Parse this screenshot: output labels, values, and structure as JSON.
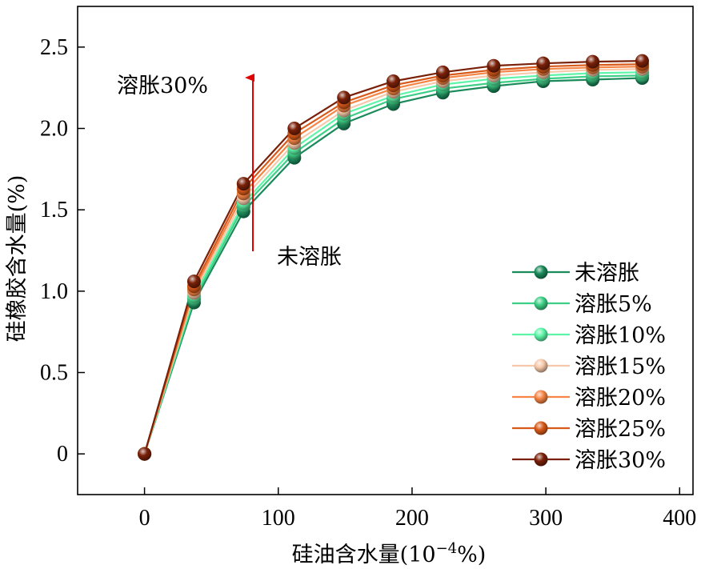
{
  "chart_data": {
    "type": "line",
    "xlabel_main": "硅油含水量(10",
    "xlabel_sup": "−4",
    "xlabel_tail": "%)",
    "ylabel": "硅橡胶含水量(%)",
    "xlim": [
      -50,
      410
    ],
    "ylim": [
      -0.25,
      2.75
    ],
    "xticks": [
      0,
      100,
      200,
      300,
      400
    ],
    "yticks": [
      0,
      0.5,
      1.0,
      1.5,
      2.0,
      2.5
    ],
    "xtick_labels": [
      "0",
      "100",
      "200",
      "300",
      "400"
    ],
    "ytick_labels": [
      "0",
      "0.5",
      "1.0",
      "1.5",
      "2.0",
      "2.5"
    ],
    "x": [
      0,
      37,
      74,
      112,
      149,
      186,
      223,
      261,
      298,
      335,
      372
    ],
    "series": [
      {
        "name": "未溶胀",
        "color": "#1a8a5a",
        "values": [
          0,
          0.93,
          1.49,
          1.82,
          2.03,
          2.15,
          2.22,
          2.26,
          2.29,
          2.3,
          2.31
        ]
      },
      {
        "name": "溶胀5%",
        "color": "#3dcf86",
        "values": [
          0,
          0.95,
          1.52,
          1.85,
          2.06,
          2.18,
          2.245,
          2.28,
          2.305,
          2.32,
          2.325
        ]
      },
      {
        "name": "溶胀10%",
        "color": "#5ef5a8",
        "values": [
          0,
          0.97,
          1.54,
          1.88,
          2.09,
          2.2,
          2.27,
          2.305,
          2.325,
          2.34,
          2.345
        ]
      },
      {
        "name": "溶胀15%",
        "color": "#f7c9aa",
        "values": [
          0,
          0.99,
          1.57,
          1.91,
          2.11,
          2.225,
          2.29,
          2.325,
          2.345,
          2.36,
          2.365
        ]
      },
      {
        "name": "溶胀20%",
        "color": "#f58545",
        "values": [
          0,
          1.01,
          1.6,
          1.94,
          2.14,
          2.245,
          2.31,
          2.345,
          2.365,
          2.375,
          2.38
        ]
      },
      {
        "name": "溶胀25%",
        "color": "#d85a1a",
        "values": [
          0,
          1.03,
          1.63,
          1.97,
          2.16,
          2.265,
          2.325,
          2.36,
          2.38,
          2.39,
          2.395
        ]
      },
      {
        "name": "溶胀30%",
        "color": "#7a2008",
        "values": [
          0,
          1.06,
          1.66,
          2.0,
          2.19,
          2.29,
          2.345,
          2.385,
          2.4,
          2.41,
          2.415
        ]
      }
    ],
    "annotations": [
      {
        "text": "溶胀30%"
      },
      {
        "text": "未溶胀"
      }
    ],
    "arrow_color": "#e00000",
    "legend_placement": "bottom-right",
    "grid": false
  }
}
